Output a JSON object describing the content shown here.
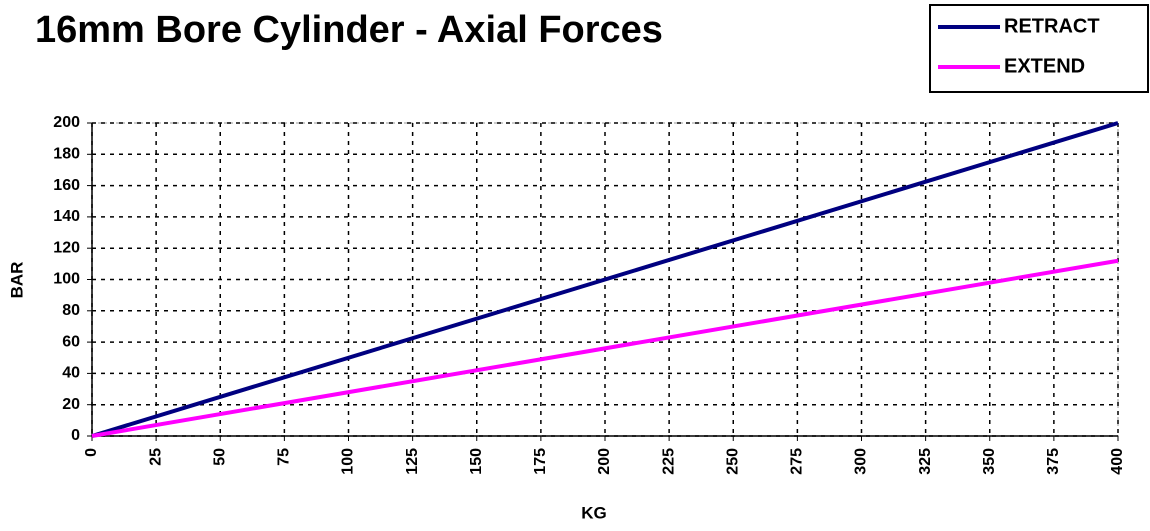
{
  "chart_data": {
    "type": "line",
    "title": "16mm Bore Cylinder - Axial Forces",
    "xlabel": "KG",
    "ylabel": "BAR",
    "x": [
      0,
      400
    ],
    "series": [
      {
        "name": "RETRACT",
        "color": "#000080",
        "values": [
          0,
          200
        ]
      },
      {
        "name": "EXTEND",
        "color": "#ff00ff",
        "values": [
          0,
          112
        ]
      }
    ],
    "xlim": [
      0,
      400
    ],
    "xticks": [
      0,
      25,
      50,
      75,
      100,
      125,
      150,
      175,
      200,
      225,
      250,
      275,
      300,
      325,
      350,
      375,
      400
    ],
    "ylim": [
      0,
      200
    ],
    "yticks": [
      0,
      20,
      40,
      60,
      80,
      100,
      120,
      140,
      160,
      180,
      200
    ],
    "grid": true,
    "legend": "top-right"
  }
}
